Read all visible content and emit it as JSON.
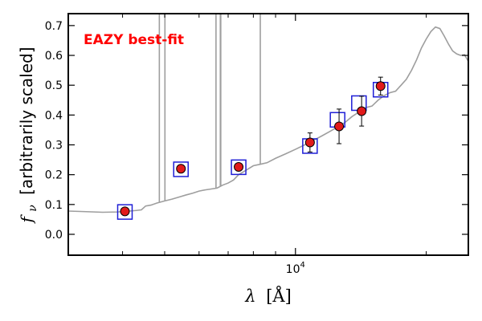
{
  "chart_data": {
    "type": "scatter",
    "annotation": "EAZY best-fit",
    "annotation_color": "#ff0000",
    "xlabel_symbol": "λ",
    "xlabel_unit": "[Å]",
    "ylabel_symbol": "f",
    "ylabel_subscript": "ν",
    "ylabel_text": "[arbitrarily scaled]",
    "x_scale": "log",
    "xlim": [
      3000,
      25000
    ],
    "ylim": [
      -0.07,
      0.74
    ],
    "yticks": [
      0.0,
      0.1,
      0.2,
      0.3,
      0.4,
      0.5,
      0.6,
      0.7
    ],
    "ytick_labels": [
      "0.0",
      "0.1",
      "0.2",
      "0.3",
      "0.4",
      "0.5",
      "0.6",
      "0.7"
    ],
    "xticks_major": [
      10000
    ],
    "xtick_major_label_base": "10",
    "xtick_major_label_exp": "4",
    "xticks_minor": [
      4000,
      5000,
      6000,
      7000,
      8000,
      9000,
      20000
    ],
    "grid": false,
    "sed_color": "#9e9e9e",
    "point_color": "#e11a1a",
    "model_box_color": "#1f1fd6",
    "sed_curve": [
      [
        3000,
        0.078
      ],
      [
        3300,
        0.076
      ],
      [
        3600,
        0.074
      ],
      [
        3900,
        0.075
      ],
      [
        4150,
        0.078
      ],
      [
        4300,
        0.08
      ],
      [
        4420,
        0.082
      ],
      [
        4520,
        0.095
      ],
      [
        4650,
        0.098
      ],
      [
        4800,
        0.105
      ],
      [
        5000,
        0.112
      ],
      [
        5200,
        0.118
      ],
      [
        5400,
        0.125
      ],
      [
        5600,
        0.132
      ],
      [
        5800,
        0.138
      ],
      [
        6000,
        0.145
      ],
      [
        6200,
        0.149
      ],
      [
        6400,
        0.152
      ],
      [
        6600,
        0.155
      ],
      [
        6800,
        0.165
      ],
      [
        7000,
        0.172
      ],
      [
        7200,
        0.182
      ],
      [
        7400,
        0.2
      ],
      [
        7700,
        0.215
      ],
      [
        8000,
        0.23
      ],
      [
        8300,
        0.235
      ],
      [
        8600,
        0.24
      ],
      [
        9000,
        0.255
      ],
      [
        9500,
        0.27
      ],
      [
        10000,
        0.285
      ],
      [
        10500,
        0.3
      ],
      [
        11000,
        0.315
      ],
      [
        11500,
        0.33
      ],
      [
        12000,
        0.345
      ],
      [
        12500,
        0.36
      ],
      [
        13000,
        0.375
      ],
      [
        13500,
        0.395
      ],
      [
        14000,
        0.41
      ],
      [
        14500,
        0.425
      ],
      [
        15000,
        0.43
      ],
      [
        15500,
        0.45
      ],
      [
        16000,
        0.465
      ],
      [
        16500,
        0.475
      ],
      [
        17000,
        0.48
      ],
      [
        17500,
        0.5
      ],
      [
        18000,
        0.52
      ],
      [
        18500,
        0.55
      ],
      [
        19000,
        0.585
      ],
      [
        19500,
        0.625
      ],
      [
        20000,
        0.655
      ],
      [
        20500,
        0.68
      ],
      [
        21000,
        0.695
      ],
      [
        21500,
        0.69
      ],
      [
        22000,
        0.665
      ],
      [
        22500,
        0.638
      ],
      [
        23000,
        0.615
      ],
      [
        23500,
        0.605
      ],
      [
        24000,
        0.6
      ],
      [
        24500,
        0.602
      ],
      [
        25000,
        0.58
      ]
    ],
    "sed_emission_lines": [
      {
        "x": 4861,
        "peak": 0.74
      },
      {
        "x": 5007,
        "peak": 0.74
      },
      {
        "x": 6563,
        "peak": 0.74
      },
      {
        "x": 6716,
        "peak": 0.74
      },
      {
        "x": 6731,
        "peak": 0.74
      },
      {
        "x": 8300,
        "peak": 0.74
      }
    ],
    "series": [
      {
        "points": [
          {
            "x": 4050,
            "y": 0.077,
            "yerr": 0.012
          },
          {
            "x": 5450,
            "y": 0.22,
            "yerr": 0.0
          },
          {
            "x": 7400,
            "y": 0.226,
            "yerr": 0.0
          },
          {
            "x": 10800,
            "y": 0.308,
            "yerr": 0.032
          },
          {
            "x": 12600,
            "y": 0.362,
            "yerr": 0.058
          },
          {
            "x": 14200,
            "y": 0.413,
            "yerr": 0.05
          },
          {
            "x": 15700,
            "y": 0.497,
            "yerr": 0.03
          }
        ]
      },
      {
        "points": [
          {
            "x": 4050,
            "y": 0.075
          },
          {
            "x": 5450,
            "y": 0.218
          },
          {
            "x": 7400,
            "y": 0.225
          },
          {
            "x": 10800,
            "y": 0.296
          },
          {
            "x": 12500,
            "y": 0.384
          },
          {
            "x": 14000,
            "y": 0.44
          },
          {
            "x": 15700,
            "y": 0.485
          }
        ]
      }
    ]
  }
}
